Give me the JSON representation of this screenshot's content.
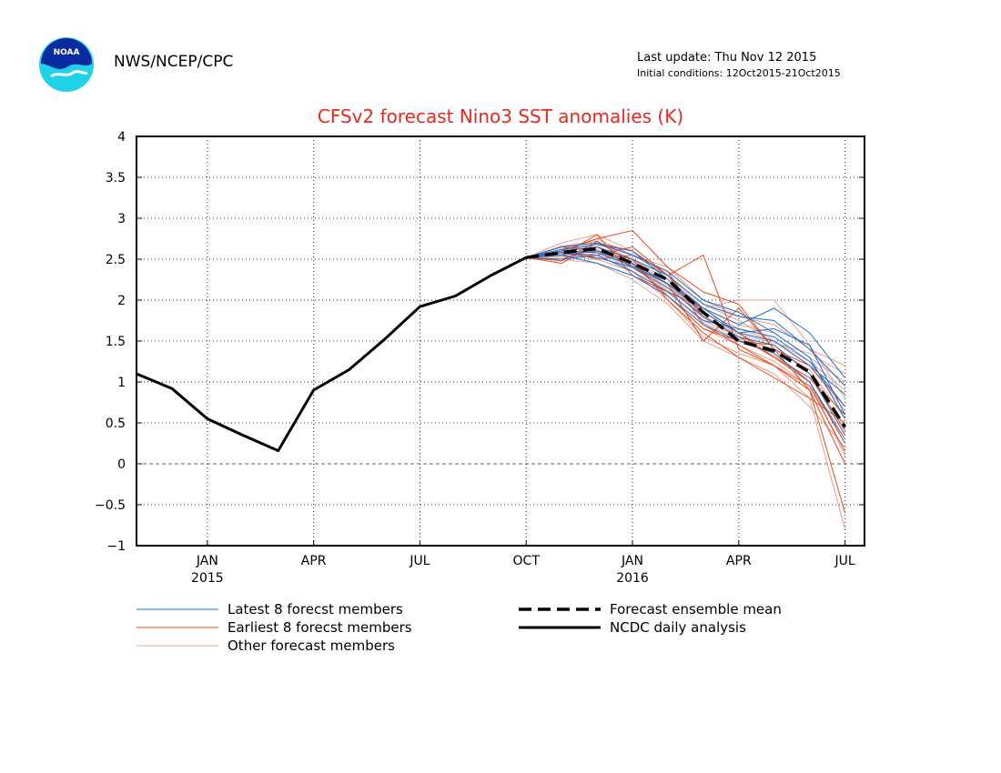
{
  "header": {
    "logo_text": "NOAA",
    "agency": "NWS/NCEP/CPC",
    "last_update": "Last update: Thu Nov 12 2015",
    "initial_conditions": "Initial conditions: 12Oct2015-21Oct2015"
  },
  "colors": {
    "title": "#e8281e",
    "latest": "#1f6fd0",
    "earliest": "#ee4a1a",
    "other": "#e8a08a",
    "analysis": "#000000"
  },
  "chart_data": {
    "type": "line",
    "title": "CFSv2 forecast Nino3 SST anomalies (K)",
    "ylim": [
      -1,
      4
    ],
    "yticks": [
      -1,
      -0.5,
      0,
      0.5,
      1,
      1.5,
      2,
      2.5,
      3,
      3.5,
      4
    ],
    "ytick_labels": [
      "−1",
      "−0.5",
      "0",
      "0.5",
      "1",
      "1.5",
      "2",
      "2.5",
      "3",
      "3.5",
      "4"
    ],
    "x_months_since_nov2014_start": "",
    "xticks": [
      {
        "label": "JAN",
        "year": "2015",
        "m": 2
      },
      {
        "label": "APR",
        "year": "",
        "m": 5
      },
      {
        "label": "JUL",
        "year": "",
        "m": 8
      },
      {
        "label": "OCT",
        "year": "",
        "m": 11
      },
      {
        "label": "JAN",
        "year": "2016",
        "m": 14
      },
      {
        "label": "APR",
        "year": "",
        "m": 17
      },
      {
        "label": "JUL",
        "year": "",
        "m": 20
      }
    ],
    "xlim": [
      0,
      20.55
    ],
    "grid": true,
    "analysis": {
      "name": "NCDC daily analysis",
      "x": [
        0,
        1,
        2,
        3,
        4,
        5,
        6,
        7,
        8,
        9,
        10,
        11
      ],
      "y": [
        1.1,
        0.92,
        0.55,
        0.35,
        0.16,
        0.9,
        1.15,
        1.52,
        1.92,
        2.05,
        2.3,
        2.52
      ]
    },
    "ensemble_mean": {
      "name": "Forecast ensemble mean",
      "x": [
        11,
        12,
        13,
        14,
        15,
        16,
        17,
        18,
        19,
        20
      ],
      "y": [
        2.52,
        2.58,
        2.63,
        2.45,
        2.25,
        1.85,
        1.5,
        1.38,
        1.12,
        0.45
      ]
    },
    "latest_members": [
      [
        2.52,
        2.55,
        2.6,
        2.45,
        2.2,
        1.9,
        1.7,
        1.9,
        1.6,
        1.05
      ],
      [
        2.52,
        2.6,
        2.65,
        2.5,
        2.3,
        1.95,
        1.8,
        1.75,
        1.4,
        0.95
      ],
      [
        2.52,
        2.5,
        2.55,
        2.35,
        2.1,
        1.75,
        1.65,
        1.55,
        1.25,
        0.7
      ],
      [
        2.52,
        2.65,
        2.7,
        2.55,
        2.35,
        2.0,
        1.85,
        1.6,
        1.3,
        0.55
      ],
      [
        2.52,
        2.58,
        2.52,
        2.4,
        2.15,
        1.8,
        1.55,
        1.45,
        1.1,
        0.35
      ],
      [
        2.52,
        2.62,
        2.68,
        2.6,
        2.25,
        1.9,
        1.6,
        1.5,
        1.2,
        0.85
      ],
      [
        2.52,
        2.55,
        2.45,
        2.3,
        2.05,
        1.7,
        1.5,
        1.35,
        1.0,
        0.25
      ],
      [
        2.52,
        2.6,
        2.58,
        2.42,
        2.2,
        1.85,
        1.6,
        1.65,
        1.45,
        0.6
      ]
    ],
    "earliest_members": [
      [
        2.52,
        2.6,
        2.75,
        2.85,
        2.4,
        2.1,
        1.95,
        1.4,
        0.9,
        -0.6
      ],
      [
        2.52,
        2.45,
        2.7,
        2.6,
        2.3,
        2.55,
        1.4,
        1.2,
        0.9,
        0.0
      ],
      [
        2.52,
        2.65,
        2.6,
        2.5,
        2.0,
        1.6,
        1.3,
        1.05,
        0.8,
        0.5
      ],
      [
        2.52,
        2.55,
        2.8,
        2.3,
        2.1,
        1.9,
        1.6,
        1.3,
        1.0,
        0.3
      ],
      [
        2.52,
        2.5,
        2.65,
        2.4,
        2.2,
        1.5,
        1.9,
        1.4,
        1.2,
        0.7
      ],
      [
        2.52,
        2.62,
        2.5,
        2.55,
        2.35,
        1.7,
        1.45,
        1.2,
        0.95,
        0.15
      ],
      [
        2.52,
        2.48,
        2.72,
        2.45,
        2.05,
        1.65,
        1.5,
        1.45,
        1.1,
        0.4
      ],
      [
        2.52,
        2.58,
        2.55,
        2.65,
        2.3,
        1.8,
        1.55,
        1.3,
        1.05,
        0.6
      ]
    ],
    "other_members": [
      [
        2.52,
        2.7,
        2.8,
        2.6,
        2.3,
        1.9,
        2.0,
        2.0,
        1.45,
        0.8
      ],
      [
        2.52,
        2.55,
        2.5,
        2.35,
        2.0,
        1.55,
        1.35,
        1.2,
        0.8,
        -0.8
      ],
      [
        2.52,
        2.6,
        2.65,
        2.5,
        2.25,
        1.85,
        1.65,
        1.5,
        1.25,
        0.9
      ],
      [
        2.52,
        2.5,
        2.45,
        2.25,
        1.95,
        1.5,
        1.3,
        1.1,
        0.7,
        0.2
      ],
      [
        2.52,
        2.62,
        2.75,
        2.55,
        2.4,
        2.0,
        1.8,
        1.7,
        1.4,
        1.2
      ],
      [
        2.52,
        2.58,
        2.6,
        2.4,
        2.1,
        1.75,
        1.55,
        1.4,
        1.15,
        0.55
      ],
      [
        2.52,
        2.65,
        2.7,
        2.5,
        2.2,
        1.8,
        1.6,
        1.35,
        1.0,
        0.1
      ],
      [
        2.52,
        2.53,
        2.55,
        2.45,
        2.15,
        1.9,
        1.7,
        1.6,
        1.3,
        1.0
      ],
      [
        2.52,
        2.57,
        2.62,
        2.35,
        2.05,
        1.65,
        1.45,
        1.25,
        0.95,
        0.3
      ],
      [
        2.52,
        2.6,
        2.68,
        2.55,
        2.3,
        1.95,
        1.75,
        1.5,
        1.2,
        0.65
      ],
      [
        2.52,
        2.48,
        2.58,
        2.42,
        2.12,
        1.72,
        1.52,
        1.32,
        1.05,
        0.45
      ],
      [
        2.52,
        2.66,
        2.72,
        2.48,
        2.18,
        1.78,
        1.58,
        1.48,
        1.35,
        1.1
      ]
    ],
    "legend": [
      {
        "label": "Latest 8 forecst members",
        "style": "latest"
      },
      {
        "label": "Earliest 8 forecst members",
        "style": "earliest"
      },
      {
        "label": "Other forecast members",
        "style": "other"
      },
      {
        "label": "Forecast ensemble mean",
        "style": "mean"
      },
      {
        "label": "NCDC daily analysis",
        "style": "analysis"
      }
    ]
  }
}
